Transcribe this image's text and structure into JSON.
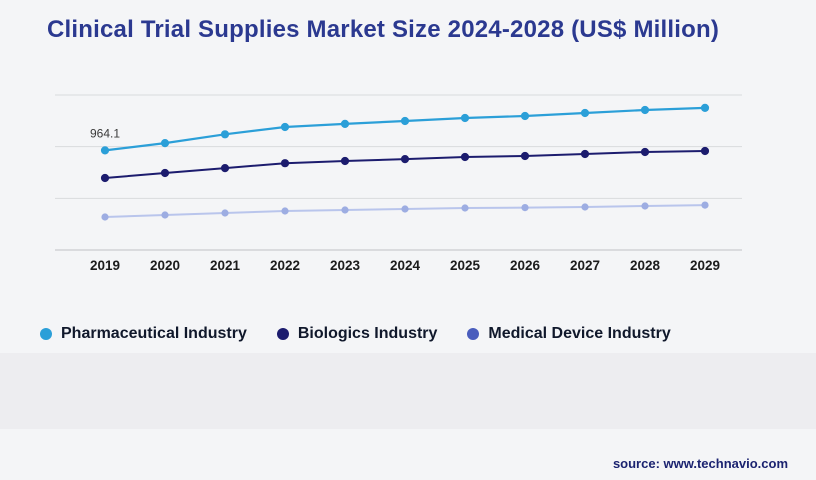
{
  "page": {
    "background": "#f4f5f7",
    "source_text": "source: www.technavio.com"
  },
  "chart_data": {
    "type": "line",
    "title": "Clinical Trial Supplies Market Size 2024-2028 (US$ Million)",
    "categories": [
      "2019",
      "2020",
      "2021",
      "2022",
      "2023",
      "2024",
      "2025",
      "2026",
      "2027",
      "2028",
      "2029"
    ],
    "series": [
      {
        "name": "Pharmaceutical Industry",
        "color": "#2b9fd8",
        "marker_color": "#2b9fd8",
        "legend_color": "#2b9fd8",
        "values": [
          964.1,
          1035,
          1120,
          1190,
          1220,
          1248,
          1277,
          1297,
          1326,
          1355,
          1375
        ]
      },
      {
        "name": "Biologics Industry",
        "color": "#1c1c6e",
        "marker_color": "#1c1c6e",
        "legend_color": "#1c1c6e",
        "values": [
          697,
          745,
          793,
          840,
          861,
          880,
          900,
          910,
          929,
          948,
          958
        ]
      },
      {
        "name": "Medical Device Industry",
        "color": "#b9c5ec",
        "marker_color": "#9dade2",
        "legend_color": "#4a5dbd",
        "values": [
          319,
          339,
          358,
          377,
          387,
          397,
          406,
          410,
          416,
          426,
          435
        ]
      }
    ],
    "ylim": [
      0,
      1500
    ],
    "xlabel": "",
    "ylabel": "",
    "grid": "horizontal",
    "gridline_count": 4,
    "legend_position": "bottom",
    "annotations": [
      {
        "series_index": 0,
        "category_index": 0,
        "text": "964.1"
      }
    ],
    "note": "Only the 2019 Pharmaceutical value (964.1) is labeled in the figure; all other values are estimated from line positions."
  }
}
